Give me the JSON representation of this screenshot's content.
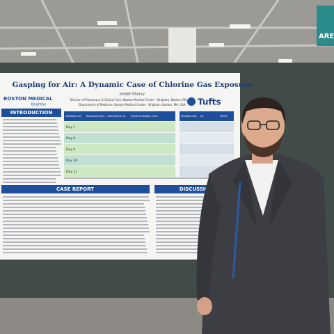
{
  "sign": "AREA",
  "poster": {
    "title": "Gasping for Air: A Dynamic Case of Chlorine Gas Exposure",
    "authors": "Joseph Khoury",
    "affiliations": [
      "Division of Pulmonary & Critical Care, Boston Medical Center - Brighton, Boston, MA, USA",
      "Department of Medicine, Boston Medical Center - Brighton, Boston, MA, USA"
    ],
    "logo_left": "BOSTON MEDICAL",
    "logo_left_sub": "Brighton",
    "logo_right": "Tufts",
    "sections": [
      "INTRODUCTION",
      "CASE REPORT",
      "DISCUSSION"
    ],
    "table": {
      "headers": [
        "Ventilator Day",
        "Respiratory Rate",
        "Tidal Volume mL",
        "Minute Ventilation L/min"
      ],
      "days": [
        "Day 7",
        "Day 8",
        "Day 9",
        "Day 10",
        "Day 11"
      ]
    },
    "table2": {
      "headers": [
        "Ventilator Day",
        "pH",
        "PaCO2"
      ]
    }
  }
}
